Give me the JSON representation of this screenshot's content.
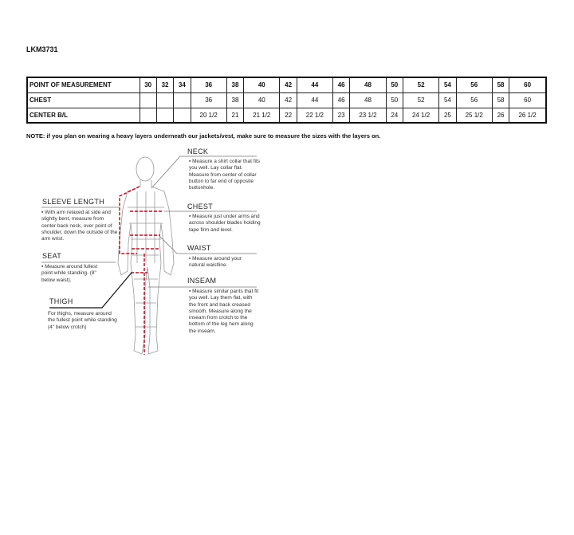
{
  "product_code": "LKM3731",
  "table": {
    "header": [
      "POINT OF MEASUREMENT",
      "30",
      "32",
      "34",
      "36",
      "38",
      "40",
      "42",
      "44",
      "46",
      "48",
      "50",
      "52",
      "54",
      "56",
      "58",
      "60"
    ],
    "rows": [
      [
        "CHEST",
        "",
        "",
        "",
        "36",
        "38",
        "40",
        "42",
        "44",
        "46",
        "48",
        "50",
        "52",
        "54",
        "56",
        "58",
        "60"
      ],
      [
        "CENTER B/L",
        "",
        "",
        "",
        "20 1/2",
        "21",
        "21 1/2",
        "22",
        "22 1/2",
        "23",
        "23 1/2",
        "24",
        "24 1/2",
        "25",
        "25 1/2",
        "26",
        "26 1/2"
      ]
    ]
  },
  "note": "NOTE: if you plan on wearing a heavy layers underneath our jackets/vest, make sure to measure the sizes with the layers on.",
  "guide": {
    "neck": {
      "title": "NECK",
      "text": "▪ Measure a shirt collar that fits you well. Lay collar flat. Measure from center of collar button to far end of opposite buttonhole."
    },
    "sleeve": {
      "title": "SLEEVE LENGTH",
      "text": "▪ With arm relaxed at side and slightly bent, measure from center back neck, over point of shoulder, down the outside of the arm wrist."
    },
    "chest": {
      "title": "CHEST",
      "text": "▪ Measure just under arms and across shoulder blades holding tape firm and level."
    },
    "waist": {
      "title": "WAIST",
      "text": "▪ Measure around your natural waistline."
    },
    "seat": {
      "title": "SEAT",
      "text": "▪ Measure around fullest point while standing. (8\" below waist)."
    },
    "inseam": {
      "title": "INSEAM",
      "text": "▪ Measure similar pants that fit you well. Lay them flat, with the front and back creased smooth. Measure along the inseam from crotch to the bottom of the leg hem along the inseam."
    },
    "thigh": {
      "title": "THIGH",
      "text": "For thighs, measure around the fullest point while standing (4\" below crotch)"
    }
  },
  "colors": {
    "measure_line": "#b0122a"
  }
}
